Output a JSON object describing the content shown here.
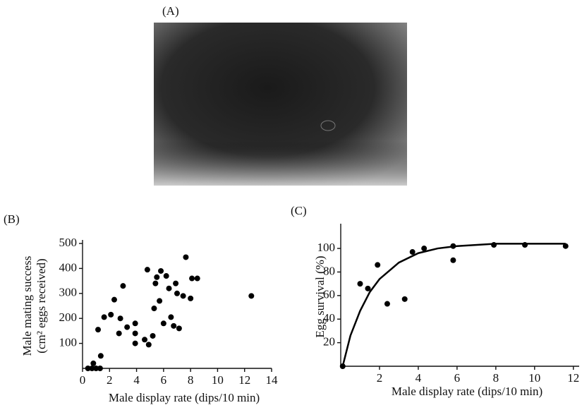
{
  "photo_label": "(A)",
  "chart_data": [
    {
      "type": "scatter",
      "panel": "(B)",
      "x_label": "Male display rate (dips/10 min)",
      "y_label": [
        "Male mating success",
        "(cm² eggs received)"
      ],
      "color": "#000000",
      "x": [
        0.4,
        0.7,
        0.8,
        1.0,
        1.3,
        1.15,
        1.35,
        1.6,
        2.1,
        2.35,
        2.8,
        3.0,
        3.3,
        2.7,
        3.9,
        3.9,
        3.9,
        4.6,
        4.9,
        4.8,
        5.2,
        5.3,
        5.4,
        5.5,
        5.7,
        5.8,
        6.0,
        6.2,
        6.4,
        6.55,
        6.75,
        6.9,
        7.0,
        7.15,
        7.45,
        7.65,
        8.0,
        8.1,
        8.5,
        12.5
      ],
      "values": [
        0,
        0,
        20,
        0,
        0,
        155,
        50,
        205,
        215,
        275,
        200,
        330,
        165,
        140,
        180,
        140,
        100,
        115,
        95,
        395,
        130,
        240,
        340,
        365,
        270,
        390,
        180,
        370,
        320,
        205,
        170,
        340,
        300,
        160,
        290,
        445,
        280,
        360,
        360,
        290
      ],
      "xlim": [
        0,
        14
      ],
      "ylim": [
        0,
        500
      ],
      "xticks": [
        0,
        2,
        4,
        6,
        8,
        10,
        12,
        14
      ],
      "yticks": [
        100,
        200,
        300,
        400,
        500
      ]
    },
    {
      "type": "scatter",
      "panel": "(C)",
      "x_label": "Male display rate (dips/10 min)",
      "y_label": [
        "Egg survival (%)"
      ],
      "color": "#000000",
      "x": [
        0.1,
        1.0,
        1.4,
        1.9,
        2.4,
        3.3,
        3.7,
        4.3,
        5.8,
        5.8,
        7.9,
        9.5,
        11.6
      ],
      "values": [
        0,
        70,
        66,
        86,
        53,
        57,
        97,
        100,
        102,
        90,
        103,
        103,
        102
      ],
      "curve": {
        "x": [
          0.1,
          0.5,
          1,
          1.5,
          2,
          3,
          4,
          5,
          6,
          8,
          10,
          11.6
        ],
        "values": [
          0,
          26,
          47,
          63,
          74,
          88,
          96,
          100,
          102,
          104,
          104,
          104
        ]
      },
      "xlim": [
        0,
        12.3
      ],
      "ylim": [
        0,
        118
      ],
      "xticks": [
        2,
        4,
        6,
        8,
        10,
        12
      ],
      "yticks": [
        20,
        40,
        60,
        80,
        100
      ]
    }
  ]
}
